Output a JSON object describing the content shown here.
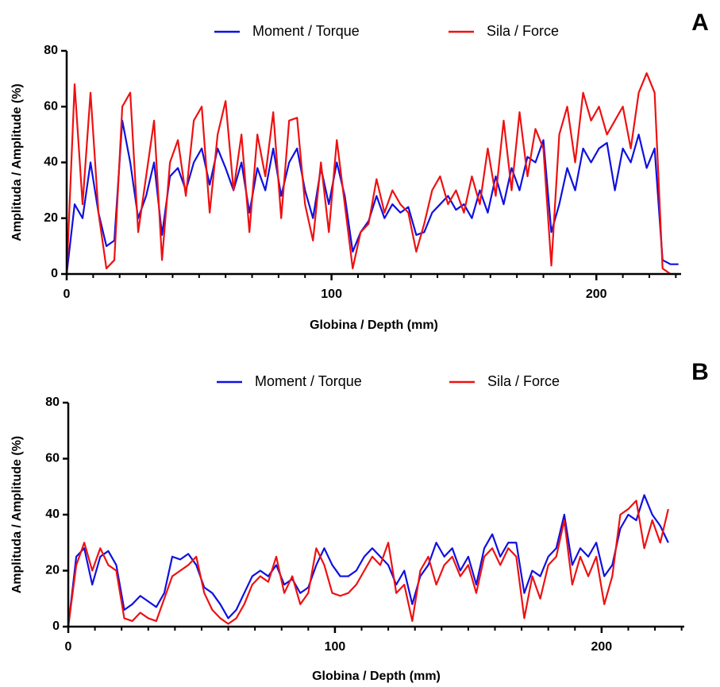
{
  "chart_data": [
    {
      "type": "line",
      "panel_label": "A",
      "xlabel": "Globina / Depth (mm)",
      "ylabel": "Amplituda / Amplitude (%)",
      "x": [
        0,
        3,
        6,
        9,
        12,
        15,
        18,
        21,
        24,
        27,
        30,
        33,
        36,
        39,
        42,
        45,
        48,
        51,
        54,
        57,
        60,
        63,
        66,
        69,
        72,
        75,
        78,
        81,
        84,
        87,
        90,
        93,
        96,
        99,
        102,
        105,
        108,
        111,
        114,
        117,
        120,
        123,
        126,
        129,
        132,
        135,
        138,
        141,
        144,
        147,
        150,
        153,
        156,
        159,
        162,
        165,
        168,
        171,
        174,
        177,
        180,
        183,
        186,
        189,
        192,
        195,
        198,
        201,
        204,
        207,
        210,
        213,
        216,
        219,
        222,
        225,
        228,
        231
      ],
      "series": [
        {
          "name": "Moment / Torque",
          "color": "#1010e0",
          "values": [
            0,
            25,
            20,
            40,
            22,
            10,
            12,
            55,
            40,
            20,
            28,
            40,
            14,
            35,
            38,
            30,
            40,
            45,
            32,
            45,
            38,
            30,
            40,
            22,
            38,
            30,
            45,
            28,
            40,
            45,
            30,
            20,
            38,
            25,
            40,
            28,
            8,
            15,
            19,
            28,
            20,
            25,
            22,
            24,
            14,
            15,
            22,
            25,
            28,
            23,
            25,
            20,
            30,
            22,
            35,
            25,
            38,
            30,
            42,
            40,
            48,
            15,
            25,
            38,
            30,
            45,
            40,
            45,
            47,
            30,
            45,
            40,
            50,
            38,
            45,
            5,
            3.5,
            3.5
          ]
        },
        {
          "name": "Sila / Force",
          "color": "#ee1111",
          "values": [
            0,
            68,
            25,
            65,
            22,
            2,
            5,
            60,
            65,
            15,
            35,
            55,
            5,
            40,
            48,
            28,
            55,
            60,
            22,
            50,
            62,
            30,
            50,
            15,
            50,
            35,
            58,
            20,
            55,
            56,
            25,
            12,
            40,
            15,
            48,
            25,
            2,
            15,
            18,
            34,
            22,
            30,
            25,
            22,
            8,
            18,
            30,
            35,
            25,
            30,
            22,
            35,
            25,
            45,
            28,
            55,
            30,
            58,
            35,
            52,
            45,
            3,
            50,
            60,
            40,
            65,
            55,
            60,
            50,
            55,
            60,
            45,
            65,
            72,
            65,
            2,
            0,
            0
          ]
        }
      ],
      "xlim": [
        0,
        232
      ],
      "ylim": [
        0,
        80
      ],
      "xticks": [
        0,
        100,
        200
      ],
      "x_minor_ticks": [
        10,
        20,
        30,
        40,
        50,
        60,
        70,
        80,
        90,
        110,
        120,
        130,
        140,
        150,
        160,
        170,
        180,
        190,
        210,
        220,
        230
      ],
      "yticks": [
        0,
        20,
        40,
        60,
        80
      ]
    },
    {
      "type": "line",
      "panel_label": "B",
      "xlabel": "Globina / Depth (mm)",
      "ylabel": "Amplituda / Amplitude (%)",
      "x": [
        0,
        3,
        6,
        9,
        12,
        15,
        18,
        21,
        24,
        27,
        30,
        33,
        36,
        39,
        42,
        45,
        48,
        51,
        54,
        57,
        60,
        63,
        66,
        69,
        72,
        75,
        78,
        81,
        84,
        87,
        90,
        93,
        96,
        99,
        102,
        105,
        108,
        111,
        114,
        117,
        120,
        123,
        126,
        129,
        132,
        135,
        138,
        141,
        144,
        147,
        150,
        153,
        156,
        159,
        162,
        165,
        168,
        171,
        174,
        177,
        180,
        183,
        186,
        189,
        192,
        195,
        198,
        201,
        204,
        207,
        210,
        213,
        216,
        219,
        222,
        225
      ],
      "series": [
        {
          "name": "Moment / Torque",
          "color": "#1010e0",
          "values": [
            0,
            25,
            28,
            15,
            25,
            27,
            22,
            6,
            8,
            11,
            9,
            7,
            12,
            25,
            24,
            26,
            22,
            14,
            12,
            8,
            3,
            6,
            12,
            18,
            20,
            18,
            22,
            15,
            17,
            12,
            14,
            22,
            28,
            22,
            18,
            18,
            20,
            25,
            28,
            25,
            22,
            15,
            20,
            8,
            18,
            22,
            30,
            25,
            28,
            20,
            25,
            15,
            28,
            33,
            25,
            30,
            30,
            12,
            20,
            18,
            25,
            28,
            40,
            22,
            28,
            25,
            30,
            18,
            22,
            35,
            40,
            38,
            47,
            40,
            36,
            30
          ]
        },
        {
          "name": "Sila / Force",
          "color": "#ee1111",
          "values": [
            0,
            22,
            30,
            20,
            28,
            22,
            20,
            3,
            2,
            5,
            3,
            2,
            10,
            18,
            20,
            22,
            25,
            12,
            6,
            3,
            1,
            3,
            8,
            15,
            18,
            16,
            25,
            12,
            18,
            8,
            12,
            28,
            22,
            12,
            11,
            12,
            15,
            20,
            25,
            22,
            30,
            12,
            15,
            2,
            20,
            25,
            15,
            22,
            25,
            18,
            22,
            12,
            25,
            28,
            22,
            28,
            25,
            3,
            18,
            10,
            22,
            25,
            38,
            15,
            25,
            18,
            25,
            8,
            18,
            40,
            42,
            45,
            28,
            38,
            30,
            42
          ]
        }
      ],
      "xlim": [
        0,
        231
      ],
      "ylim": [
        0,
        80
      ],
      "xticks": [
        0,
        100,
        200
      ],
      "x_minor_ticks": [
        10,
        20,
        30,
        40,
        50,
        60,
        70,
        80,
        90,
        110,
        120,
        130,
        140,
        150,
        160,
        170,
        180,
        190,
        210,
        220,
        230
      ],
      "yticks": [
        0,
        20,
        40,
        60,
        80
      ]
    }
  ]
}
